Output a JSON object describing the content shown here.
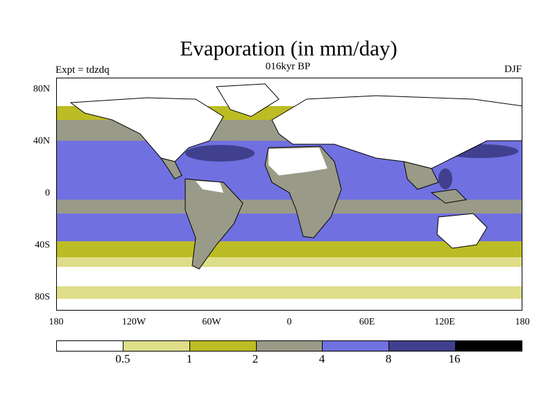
{
  "title": "Evaporation (in mm/day)",
  "subtitle": "016kyr BP",
  "left_label": "Expt = tdzdq",
  "right_label": "DJF",
  "lat_ticks": [
    "80N",
    "40N",
    "0",
    "40S",
    "80S"
  ],
  "lon_ticks": [
    "180",
    "120W",
    "60W",
    "0",
    "60E",
    "120E",
    "180"
  ],
  "colorbar": {
    "labels": [
      "0.5",
      "1",
      "2",
      "4",
      "8",
      "16"
    ],
    "colors": [
      "#ffffff",
      "#dede8a",
      "#bcbc24",
      "#9a9a88",
      "#7070e0",
      "#40408e",
      "#000000"
    ]
  }
}
